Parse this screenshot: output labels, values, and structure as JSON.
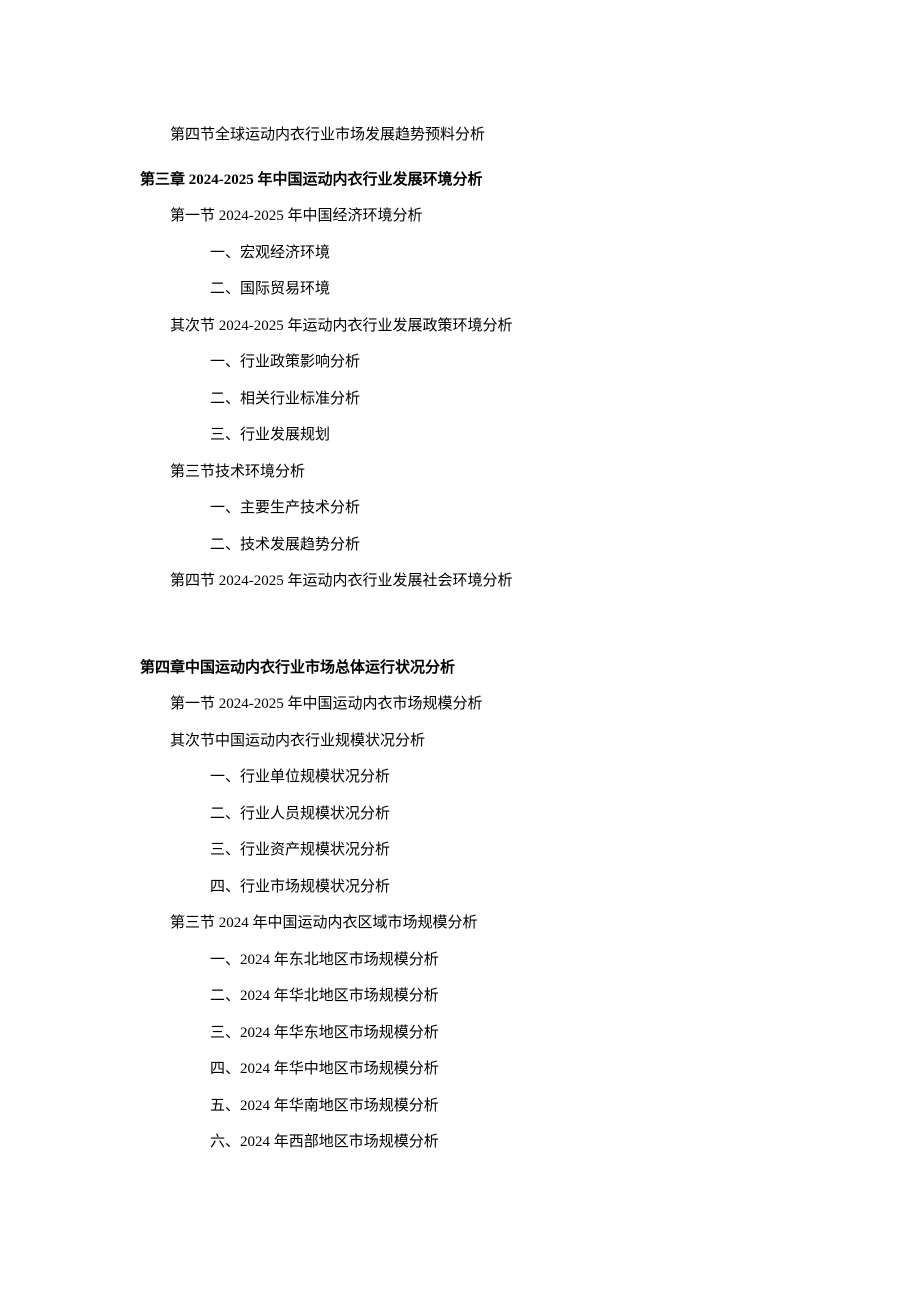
{
  "lines": {
    "l1": "第四节全球运动内衣行业市场发展趋势预料分析",
    "ch3": "第三章 2024-2025 年中国运动内衣行业发展环境分析",
    "l2": "第一节 2024-2025 年中国经济环境分析",
    "l3": "一、宏观经济环境",
    "l4": "二、国际贸易环境",
    "l5": "其次节 2024-2025 年运动内衣行业发展政策环境分析",
    "l6": "一、行业政策影响分析",
    "l7": "二、相关行业标准分析",
    "l8": "三、行业发展规划",
    "l9": "第三节技术环境分析",
    "l10": "一、主要生产技术分析",
    "l11": "二、技术发展趋势分析",
    "l12": "第四节 2024-2025 年运动内衣行业发展社会环境分析",
    "ch4": "第四章中国运动内衣行业市场总体运行状况分析",
    "l13": "第一节 2024-2025 年中国运动内衣市场规模分析",
    "l14": "其次节中国运动内衣行业规模状况分析",
    "l15": "一、行业单位规模状况分析",
    "l16": "二、行业人员规模状况分析",
    "l17": "三、行业资产规模状况分析",
    "l18": "四、行业市场规模状况分析",
    "l19": "第三节 2024 年中国运动内衣区域市场规模分析",
    "l20": "一、2024 年东北地区市场规模分析",
    "l21": "二、2024 年华北地区市场规模分析",
    "l22": "三、2024 年华东地区市场规模分析",
    "l23": "四、2024 年华中地区市场规模分析",
    "l24": "五、2024 年华南地区市场规模分析",
    "l25": "六、2024 年西部地区市场规模分析"
  }
}
